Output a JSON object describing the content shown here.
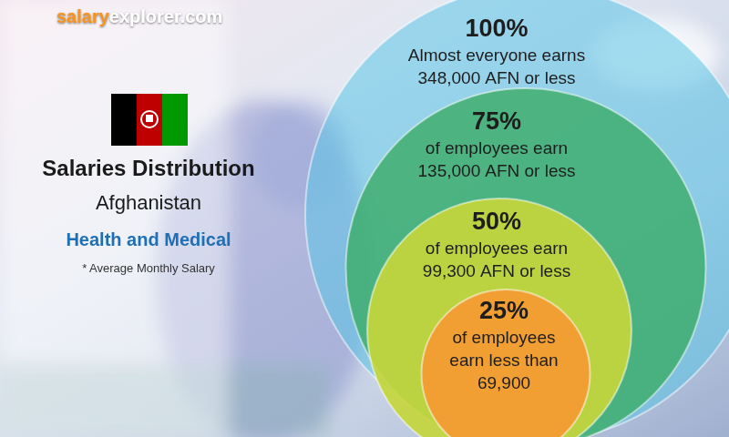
{
  "chart_data": {
    "type": "nested_circles",
    "source": [
      "salary",
      "explorer.com"
    ],
    "title": "Salaries Distribution",
    "subtitle": "Afghanistan",
    "sector": "Health and Medical",
    "note": "* Average Monthly Salary",
    "values": [
      100,
      75,
      50,
      25
    ],
    "value_labels": [
      "100%",
      "75%",
      "50%",
      "25%"
    ],
    "annotations": [
      {
        "lines": [
          "Almost everyone earns"
        ],
        "amount": 348000,
        "unit": "AFN or less"
      },
      {
        "lines": [
          "of employees earn"
        ],
        "amount": 135000,
        "unit": "AFN or less"
      },
      {
        "lines": [
          "of employees earn"
        ],
        "amount": 99300,
        "unit": "AFN or less"
      },
      {
        "lines": [
          "of employees",
          "earn less than"
        ],
        "amount": 69900
      }
    ],
    "colors": [
      "#5bc4e6",
      "#3fae6e",
      "#c5d63c",
      "#f39c33"
    ]
  }
}
